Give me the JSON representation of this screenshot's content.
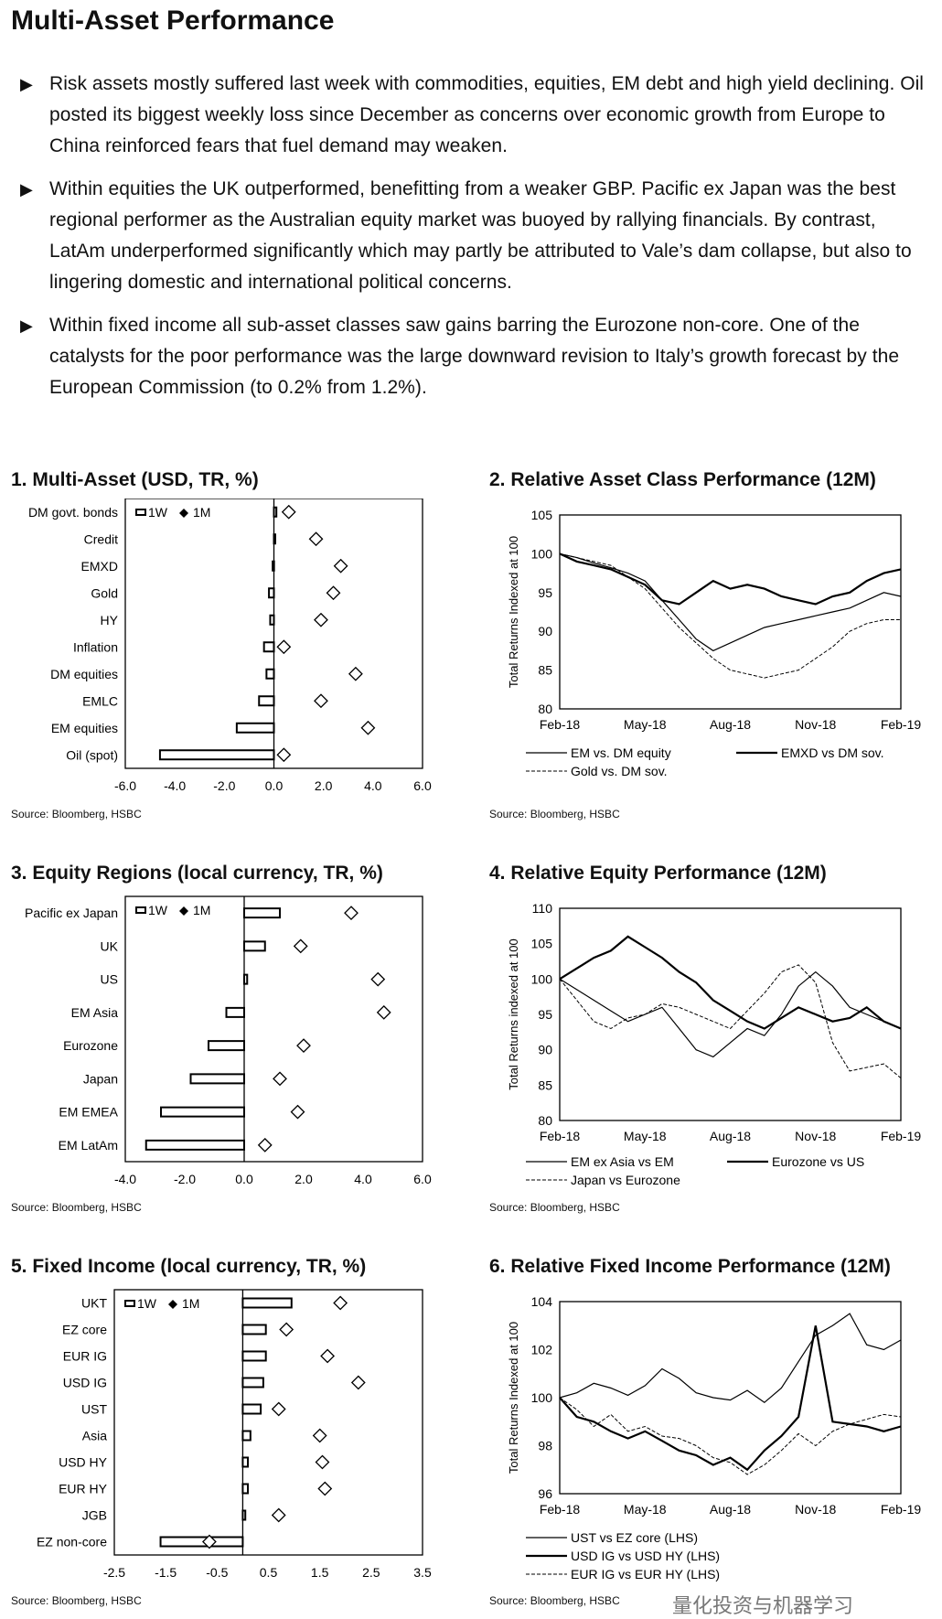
{
  "page_title": "Multi-Asset Performance",
  "bullets": [
    "Risk assets mostly suffered last week with commodities, equities, EM debt and high yield declining. Oil posted its biggest weekly loss since December as concerns over economic growth from Europe to China reinforced fears that fuel demand may weaken.",
    "Within equities the UK outperformed, benefitting from a weaker GBP. Pacific ex Japan was the best regional performer as the Australian equity market was buoyed by rallying financials. By contrast, LatAm underperformed significantly which may partly be attributed to Vale’s dam collapse, but also to lingering domestic and international political concerns.",
    "Within fixed income all sub-asset classes saw gains barring the Eurozone non-core. One of the catalysts for the poor performance was the large downward revision to Italy’s growth forecast by the European Commission (to 0.2% from 1.2%)."
  ],
  "watermark": "量化投资与机器学习",
  "chart_data": [
    {
      "type": "bar",
      "title": "1. Multi-Asset (USD, TR, %)",
      "source": "Source: Bloomberg, HSBC",
      "categories": [
        "DM govt. bonds",
        "Credit",
        "EMXD",
        "Gold",
        "HY",
        "Inflation",
        "DM equities",
        "EMLC",
        "EM equities",
        "Oil (spot)"
      ],
      "series": [
        {
          "name": "1W",
          "values": [
            0.1,
            0.05,
            -0.05,
            -0.2,
            -0.15,
            -0.4,
            -0.3,
            -0.6,
            -1.5,
            -4.6
          ]
        },
        {
          "name": "1M",
          "values": [
            0.6,
            1.7,
            2.7,
            2.4,
            1.9,
            0.4,
            3.3,
            1.9,
            3.8,
            0.4
          ]
        }
      ],
      "xlim": [
        -6,
        6
      ],
      "xticks": [
        "-6.0",
        "-4.0",
        "-2.0",
        "0.0",
        "2.0",
        "4.0",
        "6.0"
      ]
    },
    {
      "type": "line",
      "title": "2. Relative Asset Class Performance (12M)",
      "source": "Source: Bloomberg, HSBC",
      "ylabel": "Total Returns Indexed at 100",
      "ylim": [
        80,
        105
      ],
      "yticks": [
        "80",
        "85",
        "90",
        "95",
        "100",
        "105"
      ],
      "xticks": [
        "Feb-18",
        "May-18",
        "Aug-18",
        "Nov-18",
        "Feb-19"
      ],
      "series": [
        {
          "name": "EM vs. DM equity",
          "values": [
            100,
            99.5,
            98.8,
            98.2,
            97.5,
            96.5,
            94,
            91.5,
            89,
            87.5,
            88.5,
            89.5,
            90.5,
            91,
            91.5,
            92,
            92.5,
            93,
            94,
            95,
            94.5
          ]
        },
        {
          "name": "EMXD vs DM sov.",
          "values": [
            100,
            99,
            98.5,
            98,
            97,
            96,
            94,
            93.5,
            95,
            96.5,
            95.5,
            96,
            95.5,
            94.5,
            94,
            93.5,
            94.5,
            95,
            96.5,
            97.5,
            98
          ]
        },
        {
          "name": "Gold vs. DM sov.",
          "values": [
            100,
            99.5,
            99,
            98.5,
            97,
            95.5,
            93,
            90.5,
            88.5,
            86.5,
            85,
            84.5,
            84,
            84.5,
            85,
            86.5,
            88,
            90,
            91,
            91.5,
            91.5
          ]
        }
      ]
    },
    {
      "type": "bar",
      "title": "3. Equity Regions (local currency, TR, %)",
      "source": "Source: Bloomberg, HSBC",
      "categories": [
        "Pacific ex Japan",
        "UK",
        "US",
        "EM Asia",
        "Eurozone",
        "Japan",
        "EM EMEA",
        "EM LatAm"
      ],
      "series": [
        {
          "name": "1W",
          "values": [
            1.2,
            0.7,
            0.1,
            -0.6,
            -1.2,
            -1.8,
            -2.8,
            -3.3
          ]
        },
        {
          "name": "1M",
          "values": [
            3.6,
            1.9,
            4.5,
            4.7,
            2.0,
            1.2,
            1.8,
            0.7
          ]
        }
      ],
      "xlim": [
        -4,
        6
      ],
      "xticks": [
        "-4.0",
        "-2.0",
        "0.0",
        "2.0",
        "4.0",
        "6.0"
      ]
    },
    {
      "type": "line",
      "title": "4. Relative Equity Performance (12M)",
      "source": "Source: Bloomberg, HSBC",
      "ylabel": "Total Returns indexed at 100",
      "ylim": [
        80,
        110
      ],
      "yticks": [
        "80",
        "85",
        "90",
        "95",
        "100",
        "105",
        "110"
      ],
      "xticks": [
        "Feb-18",
        "May-18",
        "Aug-18",
        "Nov-18",
        "Feb-19"
      ],
      "series": [
        {
          "name": "EM ex Asia vs EM",
          "values": [
            100,
            98.5,
            97,
            95.5,
            94,
            95,
            96,
            93,
            90,
            89,
            91,
            93,
            92,
            95,
            99,
            101,
            99,
            96,
            95,
            94,
            93
          ]
        },
        {
          "name": "Eurozone vs US",
          "values": [
            100,
            101.5,
            103,
            104,
            106,
            104.5,
            103,
            101,
            99.5,
            97,
            95.5,
            94,
            93,
            94.5,
            96,
            95,
            94,
            94.5,
            96,
            94,
            93
          ]
        },
        {
          "name": "Japan vs Eurozone",
          "values": [
            100,
            97,
            94,
            93,
            94.5,
            95,
            96.5,
            96,
            95,
            94,
            93,
            95.5,
            98,
            101,
            102,
            99.5,
            91,
            87,
            87.5,
            88,
            86
          ]
        }
      ]
    },
    {
      "type": "bar",
      "title": "5. Fixed Income (local currency, TR, %)",
      "source": "Source: Bloomberg, HSBC",
      "categories": [
        "UKT",
        "EZ core",
        "EUR IG",
        "USD IG",
        "UST",
        "Asia",
        "USD HY",
        "EUR HY",
        "JGB",
        "EZ non-core"
      ],
      "series": [
        {
          "name": "1W",
          "values": [
            0.95,
            0.45,
            0.45,
            0.4,
            0.35,
            0.15,
            0.1,
            0.1,
            0.05,
            -1.6
          ]
        },
        {
          "name": "1M",
          "values": [
            1.9,
            0.85,
            1.65,
            2.25,
            0.7,
            1.5,
            1.55,
            1.6,
            0.7,
            -0.65
          ]
        }
      ],
      "xlim": [
        -2.5,
        3.5
      ],
      "xticks": [
        "-2.5",
        "-1.5",
        "-0.5",
        "0.5",
        "1.5",
        "2.5",
        "3.5"
      ]
    },
    {
      "type": "line",
      "title": "6. Relative Fixed Income Performance (12M)",
      "source": "Source: Bloomberg, HSBC",
      "ylabel": "Total Returns Indexed at 100",
      "ylim": [
        96,
        104
      ],
      "yticks": [
        "96",
        "98",
        "100",
        "102",
        "104"
      ],
      "xticks": [
        "Feb-18",
        "May-18",
        "Aug-18",
        "Nov-18",
        "Feb-19"
      ],
      "series": [
        {
          "name": "UST vs EZ core (LHS)",
          "values": [
            100,
            100.2,
            100.6,
            100.4,
            100.1,
            100.5,
            101.2,
            100.8,
            100.2,
            100.0,
            99.9,
            100.3,
            99.8,
            100.4,
            101.5,
            102.6,
            103.0,
            103.5,
            102.2,
            102.0,
            102.4
          ]
        },
        {
          "name": "USD IG vs USD HY (LHS)",
          "values": [
            100,
            99.2,
            99.0,
            98.6,
            98.3,
            98.6,
            98.2,
            97.8,
            97.6,
            97.2,
            97.5,
            97.0,
            97.8,
            98.4,
            99.2,
            103.0,
            99.0,
            98.9,
            98.8,
            98.6,
            98.8
          ]
        },
        {
          "name": "EUR IG vs EUR HY (LHS)",
          "values": [
            100,
            99.5,
            98.8,
            99.3,
            98.6,
            98.8,
            98.4,
            98.3,
            98.0,
            97.5,
            97.3,
            96.8,
            97.2,
            97.8,
            98.5,
            98.0,
            98.6,
            98.9,
            99.1,
            99.3,
            99.2
          ]
        }
      ]
    }
  ]
}
